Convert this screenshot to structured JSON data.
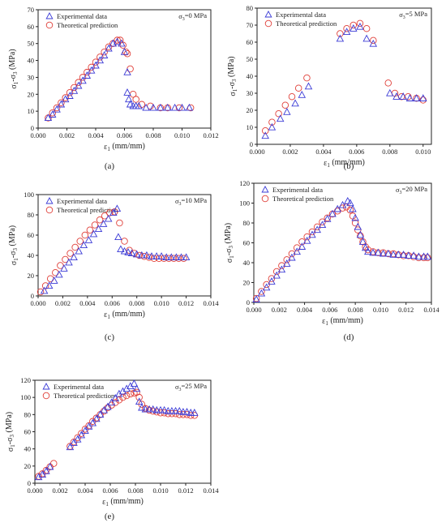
{
  "colors": {
    "experimental": "#3b3bd6",
    "theoretical": "#e0403a",
    "axis": "#222222"
  },
  "chart_data": [
    {
      "type": "scatter",
      "panel_label": "(a)",
      "annotation": "σ3=0 MPa",
      "xlabel": "ε1 (mm/mm)",
      "ylabel": "σ1-σ3 (MPa)",
      "xlim": [
        0,
        0.012
      ],
      "ylim": [
        0,
        70
      ],
      "xticks": [
        0,
        0.002,
        0.004,
        0.006,
        0.008,
        0.01,
        0.012
      ],
      "xtick_labels": [
        "0.000",
        "0.002",
        "0.004",
        "0.006",
        "0.008",
        "0.010",
        "0.012"
      ],
      "yticks": [
        0,
        10,
        20,
        30,
        40,
        50,
        60,
        70
      ],
      "ytick_labels": [
        "0",
        "10",
        "20",
        "30",
        "40",
        "50",
        "60",
        "70"
      ],
      "legend": {
        "position": "top-left",
        "entries": [
          "Experimental data",
          "Theoretical prediction"
        ]
      },
      "series": [
        {
          "name": "Experimental data",
          "marker": "triangle",
          "x": [
            0.0007,
            0.001,
            0.0013,
            0.0016,
            0.0019,
            0.0022,
            0.0025,
            0.0028,
            0.0031,
            0.0034,
            0.0037,
            0.004,
            0.0043,
            0.0046,
            0.0049,
            0.0052,
            0.0055,
            0.0058,
            0.006,
            0.0062,
            0.0062,
            0.0063,
            0.0064,
            0.0066,
            0.0068,
            0.007,
            0.0075,
            0.008,
            0.0085,
            0.009,
            0.0095,
            0.01,
            0.0105
          ],
          "y": [
            6,
            8,
            11,
            14,
            17,
            19,
            22,
            25,
            28,
            31,
            34,
            37,
            40,
            43,
            47,
            50,
            51,
            50,
            45,
            33,
            21,
            17,
            14,
            13,
            13,
            13,
            12,
            12,
            12,
            12,
            12,
            12,
            12
          ]
        },
        {
          "name": "Theoretical prediction",
          "marker": "circle",
          "x": [
            0.0007,
            0.001,
            0.0013,
            0.0016,
            0.0019,
            0.0022,
            0.0025,
            0.0028,
            0.0031,
            0.0034,
            0.0037,
            0.004,
            0.0043,
            0.0046,
            0.0049,
            0.0052,
            0.0055,
            0.0057,
            0.0059,
            0.0061,
            0.0062,
            0.0064,
            0.0066,
            0.0068,
            0.0072,
            0.0078,
            0.0085,
            0.009,
            0.0098,
            0.0106
          ],
          "y": [
            6,
            9,
            12,
            15,
            18,
            21,
            24,
            27,
            30,
            33,
            36,
            39,
            42,
            45,
            48,
            50,
            52,
            52,
            49,
            45,
            44,
            35,
            20,
            17,
            14,
            13,
            12,
            12,
            12,
            12
          ]
        }
      ]
    },
    {
      "type": "scatter",
      "panel_label": "(b)",
      "annotation": "σ3=5 MPa",
      "xlabel": "ε1 (mm/mm)",
      "ylabel": "σ1-σ3 (MPa)",
      "xlim": [
        0,
        0.0105
      ],
      "ylim": [
        0,
        80
      ],
      "xticks": [
        0,
        0.002,
        0.004,
        0.006,
        0.008,
        0.01
      ],
      "xtick_labels": [
        "0.000",
        "0.002",
        "0.004",
        "0.006",
        "0.008",
        "0.010"
      ],
      "yticks": [
        0,
        10,
        20,
        30,
        40,
        50,
        60,
        70,
        80
      ],
      "ytick_labels": [
        "0",
        "10",
        "20",
        "30",
        "40",
        "50",
        "60",
        "70",
        "80"
      ],
      "legend": {
        "position": "top-left",
        "entries": [
          "Experimental data",
          "Theoretical prediction"
        ]
      },
      "series": [
        {
          "name": "Experimental data",
          "marker": "triangle",
          "x": [
            0.0005,
            0.0009,
            0.0014,
            0.0018,
            0.0023,
            0.0027,
            0.0031,
            0.005,
            0.0054,
            0.0058,
            0.0062,
            0.0066,
            0.007,
            0.008,
            0.0084,
            0.0088,
            0.0092,
            0.0096,
            0.01
          ],
          "y": [
            5,
            10,
            15,
            19,
            24,
            29,
            34,
            62,
            66,
            68,
            69,
            62,
            59,
            30,
            28,
            28,
            27,
            27,
            27
          ]
        },
        {
          "name": "Theoretical prediction",
          "marker": "circle",
          "x": [
            0.0005,
            0.0009,
            0.0013,
            0.0017,
            0.0021,
            0.0025,
            0.003,
            0.005,
            0.0054,
            0.0058,
            0.0062,
            0.0066,
            0.007,
            0.0079,
            0.0083,
            0.0087,
            0.0091,
            0.0096,
            0.01
          ],
          "y": [
            8,
            13,
            18,
            23,
            28,
            33,
            39,
            65,
            68,
            70,
            71,
            68,
            61,
            36,
            30,
            28,
            28,
            27,
            26
          ]
        }
      ]
    },
    {
      "type": "scatter",
      "panel_label": "(c)",
      "annotation": "σ3=10 MPa",
      "xlabel": "ε1 (mm/mm)",
      "ylabel": "σ1-σ3 (MPa)",
      "xlim": [
        0,
        0.014
      ],
      "ylim": [
        0,
        100
      ],
      "xticks": [
        0,
        0.002,
        0.004,
        0.006,
        0.008,
        0.01,
        0.012,
        0.014
      ],
      "xtick_labels": [
        "0.000",
        "0.002",
        "0.004",
        "0.006",
        "0.008",
        "0.010",
        "0.012",
        "0.014"
      ],
      "yticks": [
        0,
        20,
        40,
        60,
        80,
        100
      ],
      "ytick_labels": [
        "0",
        "20",
        "40",
        "60",
        "80",
        "100"
      ],
      "legend": {
        "position": "top-left",
        "entries": [
          "Experimental data",
          "Theoretical prediction"
        ]
      },
      "series": [
        {
          "name": "Experimental data",
          "marker": "triangle",
          "x": [
            0.0005,
            0.0009,
            0.0013,
            0.0017,
            0.0021,
            0.0025,
            0.0029,
            0.0033,
            0.0037,
            0.0041,
            0.0045,
            0.0049,
            0.0053,
            0.0057,
            0.0061,
            0.0064,
            0.0065,
            0.0067,
            0.007,
            0.0073,
            0.0076,
            0.008,
            0.0084,
            0.0088,
            0.0092,
            0.0096,
            0.01,
            0.0104,
            0.0108,
            0.0112,
            0.0116,
            0.012
          ],
          "y": [
            5,
            10,
            15,
            21,
            27,
            33,
            38,
            44,
            50,
            55,
            61,
            66,
            71,
            76,
            82,
            86,
            58,
            46,
            44,
            43,
            42,
            41,
            40,
            40,
            39,
            39,
            39,
            38,
            38,
            38,
            38,
            38
          ]
        },
        {
          "name": "Theoretical prediction",
          "marker": "circle",
          "x": [
            0.0002,
            0.0006,
            0.001,
            0.0014,
            0.0018,
            0.0022,
            0.0026,
            0.003,
            0.0034,
            0.0038,
            0.0042,
            0.0046,
            0.005,
            0.0054,
            0.0058,
            0.0062,
            0.0066,
            0.007,
            0.0074,
            0.0078,
            0.0082,
            0.0086,
            0.009,
            0.0094,
            0.0098,
            0.0102,
            0.0106,
            0.011,
            0.0114,
            0.0118
          ],
          "y": [
            4,
            10,
            17,
            23,
            30,
            36,
            42,
            48,
            54,
            60,
            65,
            70,
            75,
            79,
            82,
            83,
            72,
            54,
            45,
            42,
            40,
            39,
            38,
            37,
            37,
            37,
            37,
            37,
            37,
            37
          ]
        }
      ]
    },
    {
      "type": "scatter",
      "panel_label": "(d)",
      "annotation": "σ3=20 MPa",
      "xlabel": "ε1 (mm/mm)",
      "ylabel": "σ1-σ3 (MPa)",
      "xlim": [
        0,
        0.014
      ],
      "ylim": [
        0,
        120
      ],
      "xticks": [
        0,
        0.002,
        0.004,
        0.006,
        0.008,
        0.01,
        0.012,
        0.014
      ],
      "xtick_labels": [
        "0.000",
        "0.002",
        "0.004",
        "0.006",
        "0.008",
        "0.010",
        "0.012",
        "0.014"
      ],
      "yticks": [
        0,
        20,
        40,
        60,
        80,
        100,
        120
      ],
      "ytick_labels": [
        "0",
        "20",
        "40",
        "60",
        "80",
        "100",
        "120"
      ],
      "legend": {
        "position": "top-left",
        "entries": [
          "Experimental data",
          "Theoretical prediction"
        ]
      },
      "series": [
        {
          "name": "Experimental data",
          "marker": "triangle",
          "x": [
            0.0002,
            0.0006,
            0.001,
            0.0014,
            0.0018,
            0.0022,
            0.0026,
            0.003,
            0.0034,
            0.0038,
            0.0042,
            0.0046,
            0.005,
            0.0054,
            0.0058,
            0.0062,
            0.0066,
            0.007,
            0.0074,
            0.0076,
            0.0078,
            0.008,
            0.0082,
            0.0084,
            0.0086,
            0.0088,
            0.009,
            0.0094,
            0.0098,
            0.0102,
            0.0106,
            0.011,
            0.0114,
            0.0118,
            0.0122,
            0.0126,
            0.013,
            0.0134,
            0.0137
          ],
          "y": [
            3,
            9,
            15,
            21,
            27,
            33,
            39,
            45,
            51,
            56,
            62,
            68,
            73,
            78,
            84,
            89,
            94,
            98,
            102,
            100,
            94,
            85,
            76,
            68,
            61,
            55,
            51,
            50,
            50,
            49,
            49,
            48,
            48,
            48,
            47,
            47,
            46,
            46,
            46
          ]
        },
        {
          "name": "Theoretical prediction",
          "marker": "circle",
          "x": [
            0.0002,
            0.0006,
            0.001,
            0.0014,
            0.0018,
            0.0022,
            0.0026,
            0.003,
            0.0034,
            0.0038,
            0.0042,
            0.0046,
            0.005,
            0.0054,
            0.0058,
            0.0062,
            0.0066,
            0.007,
            0.0073,
            0.0076,
            0.0078,
            0.008,
            0.0082,
            0.0084,
            0.0086,
            0.0088,
            0.009,
            0.0094,
            0.0098,
            0.0102,
            0.0106,
            0.011,
            0.0114,
            0.0118,
            0.0122,
            0.0126,
            0.013,
            0.0134,
            0.0137
          ],
          "y": [
            4,
            11,
            18,
            24,
            31,
            37,
            43,
            49,
            55,
            61,
            66,
            71,
            76,
            81,
            85,
            89,
            92,
            95,
            96,
            93,
            87,
            80,
            73,
            67,
            61,
            56,
            53,
            51,
            50,
            50,
            49,
            49,
            48,
            47,
            47,
            46,
            45,
            45,
            45
          ]
        }
      ]
    },
    {
      "type": "scatter",
      "panel_label": "(e)",
      "annotation": "σ3=25 MPa",
      "xlabel": "ε1 (mm/mm)",
      "ylabel": "σ1-σ3 (MPa)",
      "xlim": [
        0,
        0.014
      ],
      "ylim": [
        0,
        120
      ],
      "xticks": [
        0,
        0.002,
        0.004,
        0.006,
        0.008,
        0.01,
        0.012,
        0.014
      ],
      "xtick_labels": [
        "0.000",
        "0.002",
        "0.004",
        "0.006",
        "0.008",
        "0.010",
        "0.012",
        "0.014"
      ],
      "yticks": [
        0,
        20,
        40,
        60,
        80,
        100,
        120
      ],
      "ytick_labels": [
        "0",
        "20",
        "40",
        "60",
        "80",
        "100",
        "120"
      ],
      "legend": {
        "position": "top-left",
        "entries": [
          "Experimental data",
          "Theoretical prediction"
        ]
      },
      "series": [
        {
          "name": "Experimental data",
          "marker": "triangle",
          "x": [
            0.0003,
            0.0006,
            0.0009,
            0.0012,
            0.0028,
            0.0031,
            0.0034,
            0.0037,
            0.004,
            0.0043,
            0.0046,
            0.0049,
            0.0052,
            0.0055,
            0.0058,
            0.0061,
            0.0064,
            0.0067,
            0.007,
            0.0073,
            0.0076,
            0.0079,
            0.0081,
            0.0083,
            0.0085,
            0.0088,
            0.0091,
            0.0094,
            0.0097,
            0.01,
            0.0103,
            0.0106,
            0.0109,
            0.0112,
            0.0115,
            0.0118,
            0.0121,
            0.0124,
            0.0127
          ],
          "y": [
            7,
            10,
            14,
            19,
            42,
            47,
            51,
            56,
            61,
            66,
            70,
            75,
            80,
            85,
            89,
            94,
            99,
            104,
            107,
            110,
            113,
            116,
            110,
            95,
            88,
            86,
            86,
            86,
            85,
            85,
            85,
            84,
            84,
            84,
            84,
            83,
            83,
            82,
            82
          ]
        },
        {
          "name": "Theoretical prediction",
          "marker": "circle",
          "x": [
            0.0003,
            0.0006,
            0.0009,
            0.0012,
            0.0015,
            0.0028,
            0.0031,
            0.0034,
            0.0037,
            0.004,
            0.0043,
            0.0046,
            0.0049,
            0.0052,
            0.0055,
            0.0058,
            0.0061,
            0.0064,
            0.0067,
            0.007,
            0.0073,
            0.0076,
            0.0079,
            0.0081,
            0.0083,
            0.0085,
            0.0088,
            0.0091,
            0.0094,
            0.0097,
            0.01,
            0.0103,
            0.0106,
            0.0109,
            0.0112,
            0.0115,
            0.0118,
            0.0121,
            0.0124,
            0.0127
          ],
          "y": [
            8,
            11,
            15,
            19,
            23,
            43,
            48,
            53,
            58,
            63,
            67,
            72,
            76,
            80,
            84,
            88,
            91,
            94,
            97,
            100,
            102,
            104,
            105,
            106,
            100,
            92,
            87,
            85,
            84,
            83,
            82,
            82,
            81,
            81,
            81,
            80,
            80,
            80,
            79,
            79
          ]
        }
      ]
    }
  ]
}
